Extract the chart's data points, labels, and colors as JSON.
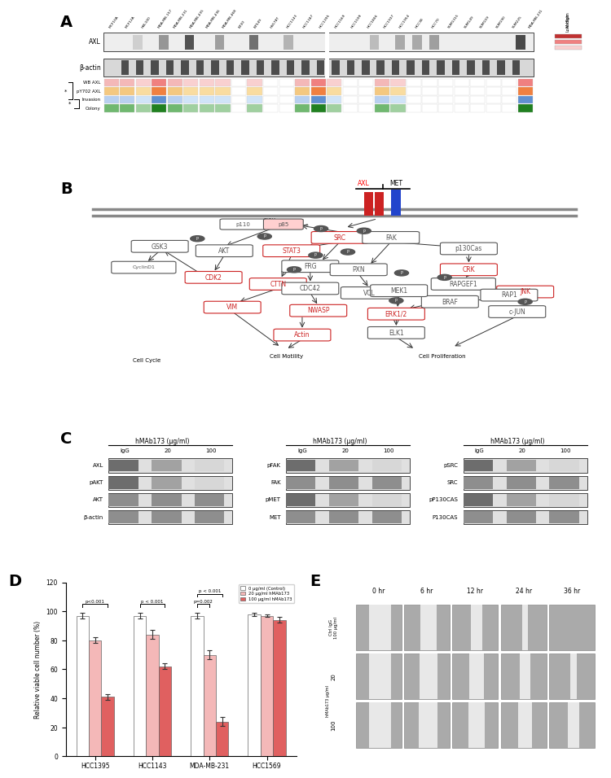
{
  "panel_A": {
    "label": "A",
    "cell_lines": [
      "MCF10A",
      "MCF12A",
      "HBL100",
      "MDA-MB-157",
      "MDA-MB-231",
      "MDA-MB-435",
      "MDA-MB-436",
      "MDA-MB-468",
      "BT20",
      "BT549",
      "HS578T",
      "HCC1143",
      "HCC1187",
      "HCC1395",
      "HCC1569",
      "HCC1599",
      "HCC1806",
      "HCC1937",
      "HCC1954",
      "HCC38",
      "HCC70",
      "SUM1315",
      "SUM149",
      "SUM159",
      "SUM190",
      "SUM225",
      "MDA-MB-231"
    ],
    "heatmap_rows": [
      "WB AXL",
      "pY702 AXL",
      "Invasion",
      "Colony"
    ],
    "heatmap_colors": {
      "WB AXL": [
        "#f4b8b8",
        "#f4b8b8",
        "#f9d0d0",
        "#f08080",
        "#f4b8b8",
        "#f9d0d0",
        "#f9d0d0",
        "#f9d0d0",
        "#ffffff",
        "#f9d0d0",
        "#ffffff",
        "#ffffff",
        "#f4b8b8",
        "#f08080",
        "#f9d0d0",
        "#ffffff",
        "#ffffff",
        "#f4b8b8",
        "#f9d0d0",
        "#ffffff",
        "#ffffff",
        "#ffffff",
        "#ffffff",
        "#ffffff",
        "#ffffff",
        "#ffffff",
        "#f08080"
      ],
      "pY702 AXL": [
        "#f4c880",
        "#f4c880",
        "#f9dca0",
        "#f08040",
        "#f4c880",
        "#f9dca0",
        "#f9dca0",
        "#f9dca0",
        "#ffffff",
        "#f9dca0",
        "#ffffff",
        "#ffffff",
        "#f4c880",
        "#f08040",
        "#f9dca0",
        "#ffffff",
        "#ffffff",
        "#f4c880",
        "#f9dca0",
        "#ffffff",
        "#ffffff",
        "#ffffff",
        "#ffffff",
        "#ffffff",
        "#ffffff",
        "#ffffff",
        "#f08040"
      ],
      "Invasion": [
        "#b8d0f0",
        "#b8d0f0",
        "#d0e4f8",
        "#6090d0",
        "#b8d0f0",
        "#d0e4f8",
        "#d0e4f8",
        "#d0e4f8",
        "#ffffff",
        "#d0e4f8",
        "#ffffff",
        "#ffffff",
        "#b8d0f0",
        "#6090d0",
        "#d0e4f8",
        "#ffffff",
        "#ffffff",
        "#b8d0f0",
        "#d0e4f8",
        "#ffffff",
        "#ffffff",
        "#ffffff",
        "#ffffff",
        "#ffffff",
        "#ffffff",
        "#ffffff",
        "#6090d0"
      ],
      "Colony": [
        "#70b870",
        "#70b870",
        "#a0d0a0",
        "#208020",
        "#70b870",
        "#a0d0a0",
        "#a0d0a0",
        "#a0d0a0",
        "#ffffff",
        "#a0d0a0",
        "#ffffff",
        "#ffffff",
        "#70b870",
        "#208020",
        "#a0d0a0",
        "#ffffff",
        "#ffffff",
        "#70b870",
        "#a0d0a0",
        "#ffffff",
        "#ffffff",
        "#ffffff",
        "#ffffff",
        "#ffffff",
        "#ffffff",
        "#ffffff",
        "#208020"
      ]
    }
  },
  "panel_C": {
    "label": "C",
    "groups": [
      {
        "title": "hMAb173 (μg/ml)",
        "x_labels": [
          "IgG",
          "20",
          "100"
        ],
        "proteins": [
          "AXL",
          "pAKT",
          "AKT",
          "β-actin"
        ]
      },
      {
        "title": "hMAb173 (μg/ml)",
        "x_labels": [
          "IgG",
          "20",
          "100"
        ],
        "proteins": [
          "pFAK",
          "FAK",
          "pMET",
          "MET"
        ]
      },
      {
        "title": "hMAb173 (μg/ml)",
        "x_labels": [
          "IgG",
          "20",
          "100"
        ],
        "proteins": [
          "pSRC",
          "SRC",
          "pP130CAS",
          "P130CAS"
        ]
      }
    ]
  },
  "panel_D": {
    "label": "D",
    "ylabel": "Relative viable cell number (%)",
    "ylim": [
      0,
      120
    ],
    "yticks": [
      0,
      20,
      40,
      60,
      80,
      100,
      120
    ],
    "cell_lines": [
      "HCC1395",
      "HCC1143",
      "MDA-MB-231",
      "HCC1569"
    ],
    "conditions": [
      "0 μg/ml (Control)",
      "20 μg/ml hMAb173",
      "100 μg/ml hMAb173"
    ],
    "bar_colors": [
      "#ffffff",
      "#f4b8b8",
      "#e06060"
    ],
    "values": {
      "HCC1395": [
        97,
        80,
        41
      ],
      "HCC1143": [
        97,
        84,
        62
      ],
      "MDA-MB-231": [
        97,
        70,
        24
      ],
      "HCC1569": [
        98,
        97,
        94
      ]
    },
    "errors": {
      "HCC1395": [
        2,
        2,
        2
      ],
      "HCC1143": [
        2,
        3,
        2
      ],
      "MDA-MB-231": [
        2,
        3,
        3
      ],
      "HCC1569": [
        1,
        1,
        2
      ]
    },
    "pvalues": {
      "HCC1395": [
        "p<0.001"
      ],
      "HCC1143": [
        "p < 0.001"
      ],
      "MDA-MB-231": [
        "p=0.002",
        "p < 0.001"
      ],
      "HCC1569": []
    }
  },
  "panel_E": {
    "label": "E",
    "time_points": [
      "0 hr",
      "6 hr",
      "12 hr",
      "24 hr",
      "36 hr"
    ]
  },
  "figure_bg": "#ffffff"
}
